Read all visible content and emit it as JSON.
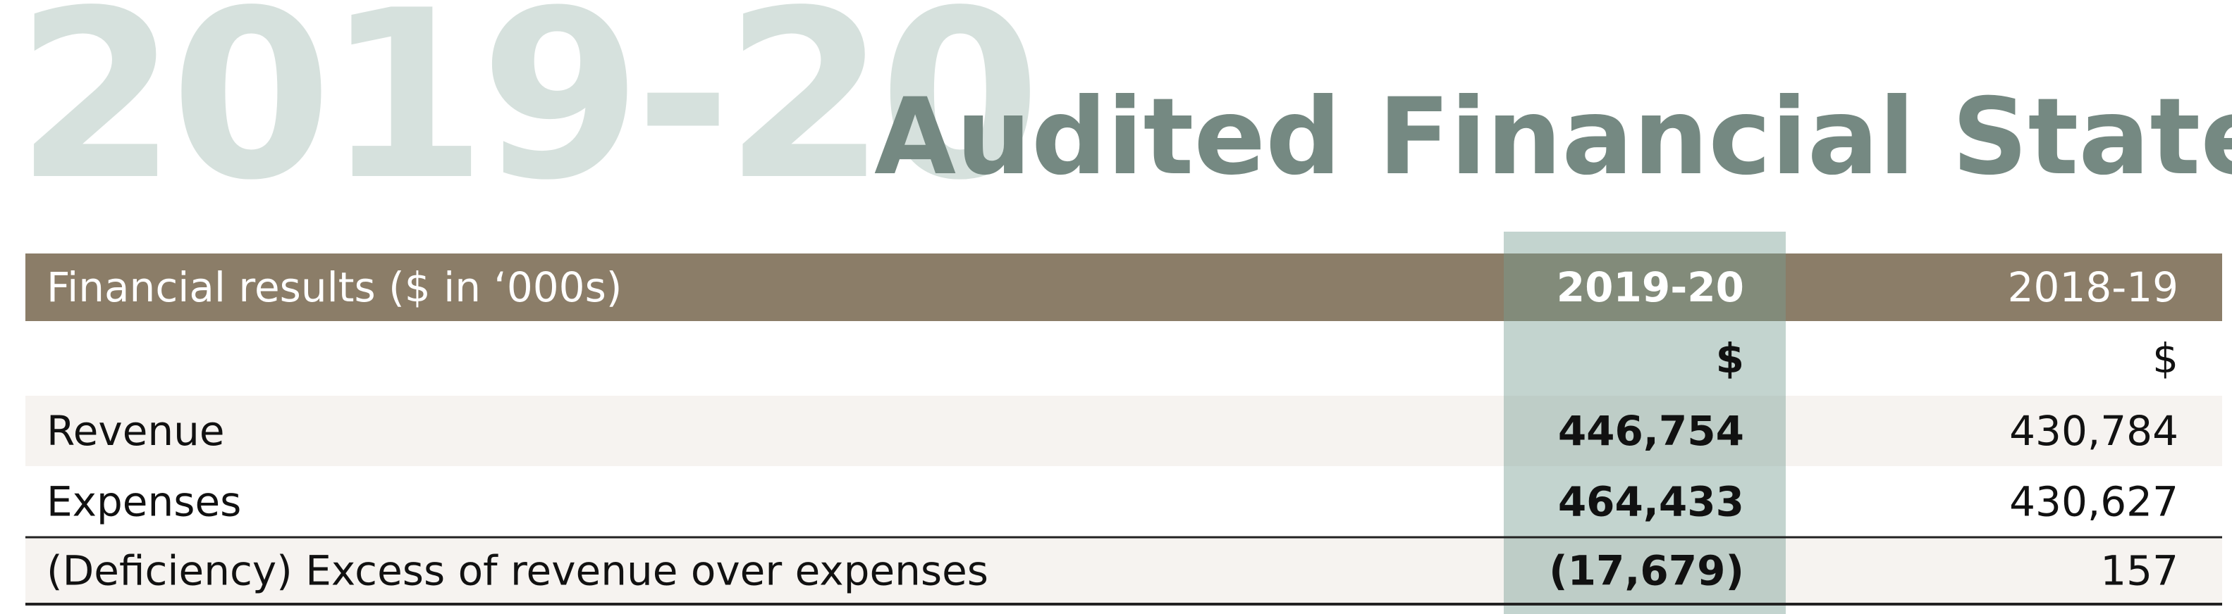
{
  "title": {
    "year": "2019-20",
    "text": "Audited Financial Statements"
  },
  "table": {
    "header": [
      "Financial results ($ in ‘000s)",
      "2019-20",
      "2018-19"
    ],
    "rows": [
      [
        "",
        "$",
        "$"
      ],
      [
        "Revenue",
        "446,754",
        "430,784"
      ],
      [
        "Expenses",
        "464,433",
        "430,627"
      ],
      [
        "(Deficiency) Excess of revenue over expenses",
        "(17,679)",
        "157"
      ]
    ]
  }
}
